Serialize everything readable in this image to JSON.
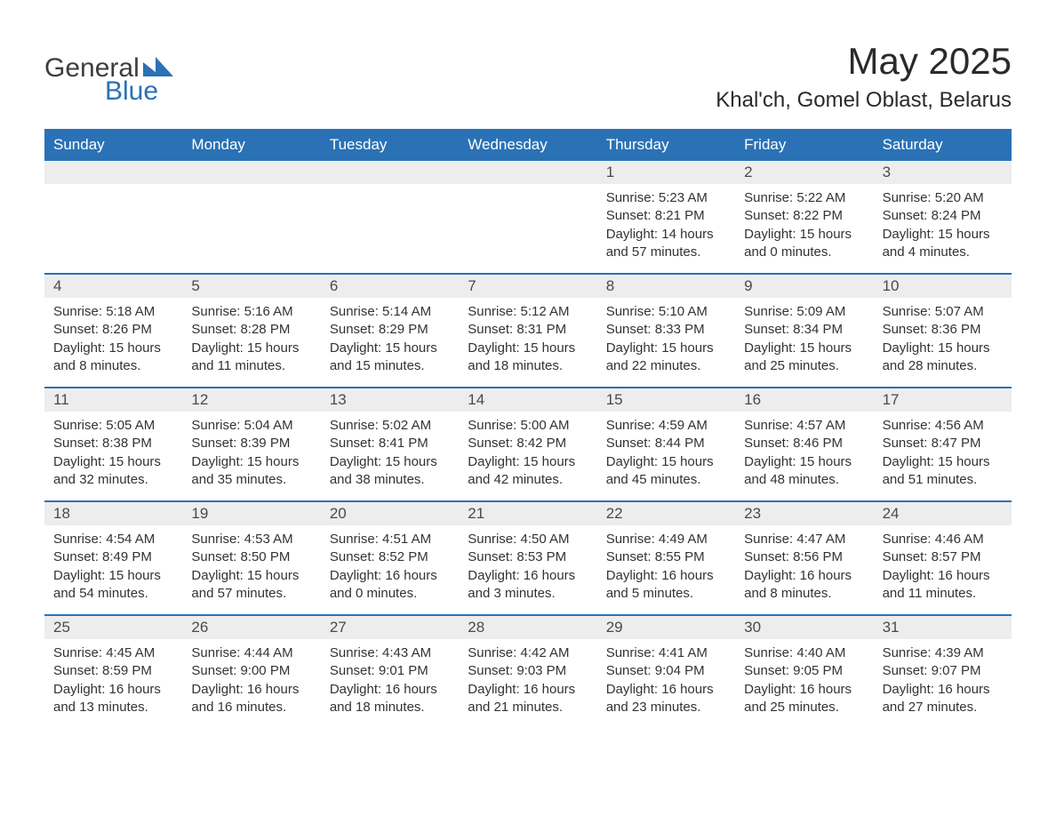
{
  "logo": {
    "general": "General",
    "blue": "Blue"
  },
  "title": "May 2025",
  "location": "Khal'ch, Gomel Oblast, Belarus",
  "colors": {
    "header_bg": "#2a72b5",
    "daynum_bg": "#ededed",
    "week_border": "#2a72b5",
    "page_bg": "#ffffff",
    "text": "#333333",
    "title_text": "#2a2a2a"
  },
  "weekdays": [
    "Sunday",
    "Monday",
    "Tuesday",
    "Wednesday",
    "Thursday",
    "Friday",
    "Saturday"
  ],
  "weeks": [
    [
      {
        "n": "",
        "sunrise": "",
        "sunset": "",
        "dl1": "",
        "dl2": ""
      },
      {
        "n": "",
        "sunrise": "",
        "sunset": "",
        "dl1": "",
        "dl2": ""
      },
      {
        "n": "",
        "sunrise": "",
        "sunset": "",
        "dl1": "",
        "dl2": ""
      },
      {
        "n": "",
        "sunrise": "",
        "sunset": "",
        "dl1": "",
        "dl2": ""
      },
      {
        "n": "1",
        "sunrise": "Sunrise: 5:23 AM",
        "sunset": "Sunset: 8:21 PM",
        "dl1": "Daylight: 14 hours",
        "dl2": "and 57 minutes."
      },
      {
        "n": "2",
        "sunrise": "Sunrise: 5:22 AM",
        "sunset": "Sunset: 8:22 PM",
        "dl1": "Daylight: 15 hours",
        "dl2": "and 0 minutes."
      },
      {
        "n": "3",
        "sunrise": "Sunrise: 5:20 AM",
        "sunset": "Sunset: 8:24 PM",
        "dl1": "Daylight: 15 hours",
        "dl2": "and 4 minutes."
      }
    ],
    [
      {
        "n": "4",
        "sunrise": "Sunrise: 5:18 AM",
        "sunset": "Sunset: 8:26 PM",
        "dl1": "Daylight: 15 hours",
        "dl2": "and 8 minutes."
      },
      {
        "n": "5",
        "sunrise": "Sunrise: 5:16 AM",
        "sunset": "Sunset: 8:28 PM",
        "dl1": "Daylight: 15 hours",
        "dl2": "and 11 minutes."
      },
      {
        "n": "6",
        "sunrise": "Sunrise: 5:14 AM",
        "sunset": "Sunset: 8:29 PM",
        "dl1": "Daylight: 15 hours",
        "dl2": "and 15 minutes."
      },
      {
        "n": "7",
        "sunrise": "Sunrise: 5:12 AM",
        "sunset": "Sunset: 8:31 PM",
        "dl1": "Daylight: 15 hours",
        "dl2": "and 18 minutes."
      },
      {
        "n": "8",
        "sunrise": "Sunrise: 5:10 AM",
        "sunset": "Sunset: 8:33 PM",
        "dl1": "Daylight: 15 hours",
        "dl2": "and 22 minutes."
      },
      {
        "n": "9",
        "sunrise": "Sunrise: 5:09 AM",
        "sunset": "Sunset: 8:34 PM",
        "dl1": "Daylight: 15 hours",
        "dl2": "and 25 minutes."
      },
      {
        "n": "10",
        "sunrise": "Sunrise: 5:07 AM",
        "sunset": "Sunset: 8:36 PM",
        "dl1": "Daylight: 15 hours",
        "dl2": "and 28 minutes."
      }
    ],
    [
      {
        "n": "11",
        "sunrise": "Sunrise: 5:05 AM",
        "sunset": "Sunset: 8:38 PM",
        "dl1": "Daylight: 15 hours",
        "dl2": "and 32 minutes."
      },
      {
        "n": "12",
        "sunrise": "Sunrise: 5:04 AM",
        "sunset": "Sunset: 8:39 PM",
        "dl1": "Daylight: 15 hours",
        "dl2": "and 35 minutes."
      },
      {
        "n": "13",
        "sunrise": "Sunrise: 5:02 AM",
        "sunset": "Sunset: 8:41 PM",
        "dl1": "Daylight: 15 hours",
        "dl2": "and 38 minutes."
      },
      {
        "n": "14",
        "sunrise": "Sunrise: 5:00 AM",
        "sunset": "Sunset: 8:42 PM",
        "dl1": "Daylight: 15 hours",
        "dl2": "and 42 minutes."
      },
      {
        "n": "15",
        "sunrise": "Sunrise: 4:59 AM",
        "sunset": "Sunset: 8:44 PM",
        "dl1": "Daylight: 15 hours",
        "dl2": "and 45 minutes."
      },
      {
        "n": "16",
        "sunrise": "Sunrise: 4:57 AM",
        "sunset": "Sunset: 8:46 PM",
        "dl1": "Daylight: 15 hours",
        "dl2": "and 48 minutes."
      },
      {
        "n": "17",
        "sunrise": "Sunrise: 4:56 AM",
        "sunset": "Sunset: 8:47 PM",
        "dl1": "Daylight: 15 hours",
        "dl2": "and 51 minutes."
      }
    ],
    [
      {
        "n": "18",
        "sunrise": "Sunrise: 4:54 AM",
        "sunset": "Sunset: 8:49 PM",
        "dl1": "Daylight: 15 hours",
        "dl2": "and 54 minutes."
      },
      {
        "n": "19",
        "sunrise": "Sunrise: 4:53 AM",
        "sunset": "Sunset: 8:50 PM",
        "dl1": "Daylight: 15 hours",
        "dl2": "and 57 minutes."
      },
      {
        "n": "20",
        "sunrise": "Sunrise: 4:51 AM",
        "sunset": "Sunset: 8:52 PM",
        "dl1": "Daylight: 16 hours",
        "dl2": "and 0 minutes."
      },
      {
        "n": "21",
        "sunrise": "Sunrise: 4:50 AM",
        "sunset": "Sunset: 8:53 PM",
        "dl1": "Daylight: 16 hours",
        "dl2": "and 3 minutes."
      },
      {
        "n": "22",
        "sunrise": "Sunrise: 4:49 AM",
        "sunset": "Sunset: 8:55 PM",
        "dl1": "Daylight: 16 hours",
        "dl2": "and 5 minutes."
      },
      {
        "n": "23",
        "sunrise": "Sunrise: 4:47 AM",
        "sunset": "Sunset: 8:56 PM",
        "dl1": "Daylight: 16 hours",
        "dl2": "and 8 minutes."
      },
      {
        "n": "24",
        "sunrise": "Sunrise: 4:46 AM",
        "sunset": "Sunset: 8:57 PM",
        "dl1": "Daylight: 16 hours",
        "dl2": "and 11 minutes."
      }
    ],
    [
      {
        "n": "25",
        "sunrise": "Sunrise: 4:45 AM",
        "sunset": "Sunset: 8:59 PM",
        "dl1": "Daylight: 16 hours",
        "dl2": "and 13 minutes."
      },
      {
        "n": "26",
        "sunrise": "Sunrise: 4:44 AM",
        "sunset": "Sunset: 9:00 PM",
        "dl1": "Daylight: 16 hours",
        "dl2": "and 16 minutes."
      },
      {
        "n": "27",
        "sunrise": "Sunrise: 4:43 AM",
        "sunset": "Sunset: 9:01 PM",
        "dl1": "Daylight: 16 hours",
        "dl2": "and 18 minutes."
      },
      {
        "n": "28",
        "sunrise": "Sunrise: 4:42 AM",
        "sunset": "Sunset: 9:03 PM",
        "dl1": "Daylight: 16 hours",
        "dl2": "and 21 minutes."
      },
      {
        "n": "29",
        "sunrise": "Sunrise: 4:41 AM",
        "sunset": "Sunset: 9:04 PM",
        "dl1": "Daylight: 16 hours",
        "dl2": "and 23 minutes."
      },
      {
        "n": "30",
        "sunrise": "Sunrise: 4:40 AM",
        "sunset": "Sunset: 9:05 PM",
        "dl1": "Daylight: 16 hours",
        "dl2": "and 25 minutes."
      },
      {
        "n": "31",
        "sunrise": "Sunrise: 4:39 AM",
        "sunset": "Sunset: 9:07 PM",
        "dl1": "Daylight: 16 hours",
        "dl2": "and 27 minutes."
      }
    ]
  ]
}
